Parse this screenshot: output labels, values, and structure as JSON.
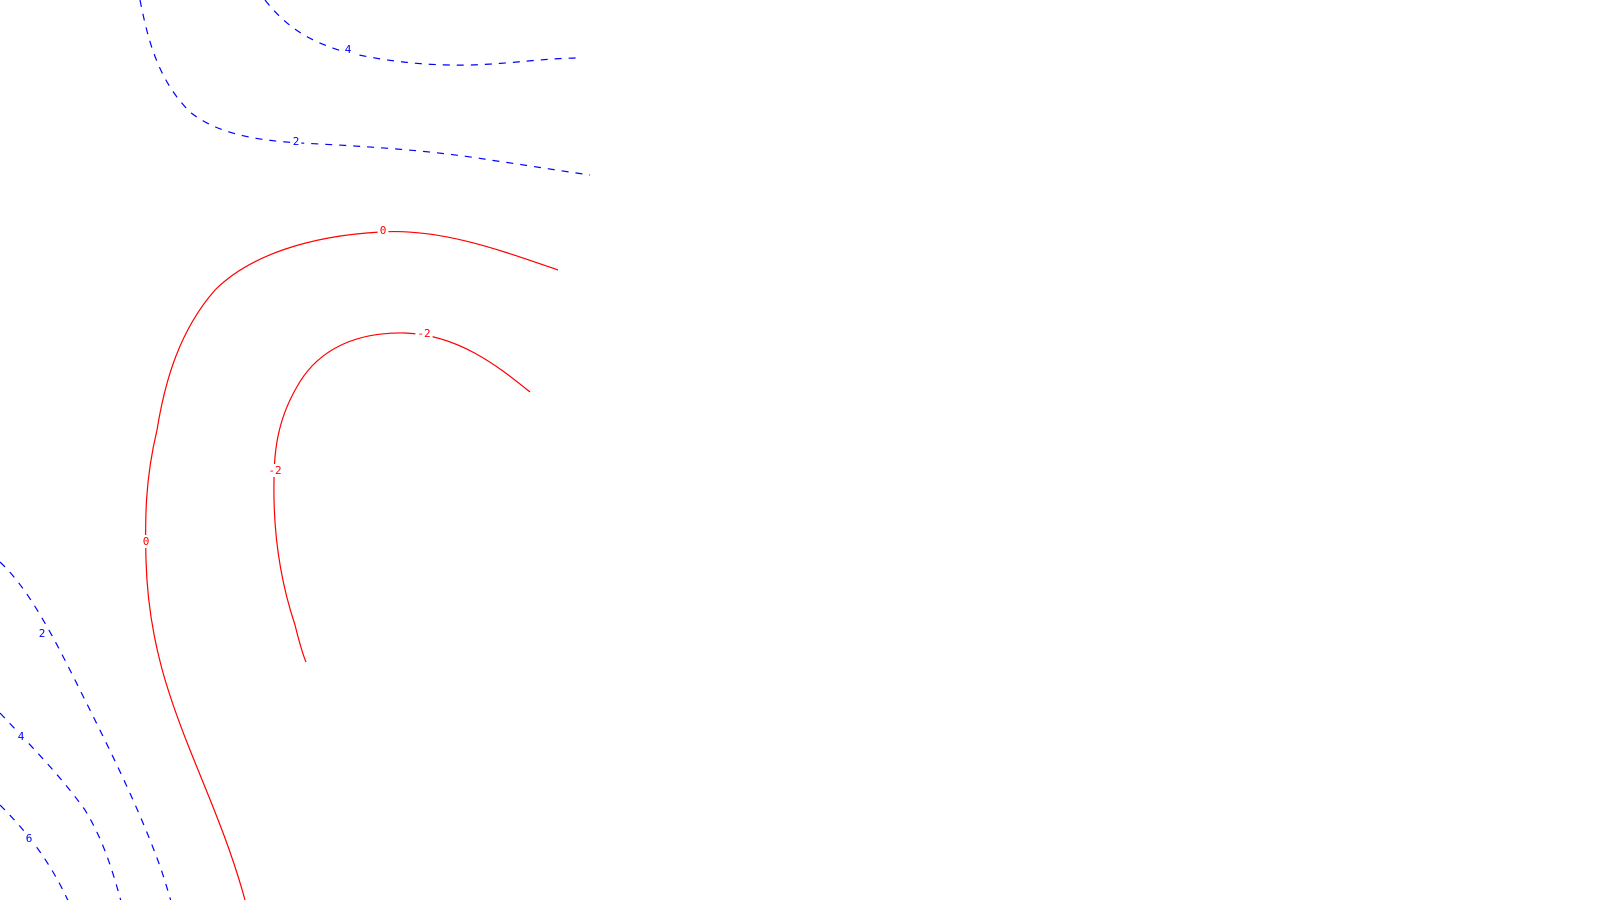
{
  "colors": {
    "positive": "#0000ff",
    "negative": "#ff0000",
    "background": "#ffffff"
  },
  "contours": [
    {
      "id": "pos-top-4",
      "level": "4",
      "sign": "positive",
      "style": "dashed"
    },
    {
      "id": "pos-top-2",
      "level": "2",
      "sign": "positive",
      "style": "dashed"
    },
    {
      "id": "zero",
      "level": "0",
      "sign": "negative",
      "style": "solid"
    },
    {
      "id": "neg-2",
      "level": "-2",
      "sign": "negative",
      "style": "solid"
    },
    {
      "id": "pos-bl-2",
      "level": "2",
      "sign": "positive",
      "style": "dashed"
    },
    {
      "id": "pos-bl-4",
      "level": "4",
      "sign": "positive",
      "style": "dashed"
    },
    {
      "id": "pos-bl-6",
      "level": "6",
      "sign": "positive",
      "style": "dashed"
    }
  ],
  "labels": [
    {
      "text": "4",
      "sign": "positive"
    },
    {
      "text": "2",
      "sign": "positive"
    },
    {
      "text": "0",
      "sign": "negative"
    },
    {
      "text": "-2",
      "sign": "negative"
    },
    {
      "text": "-2",
      "sign": "negative"
    },
    {
      "text": "0",
      "sign": "negative"
    },
    {
      "text": "2",
      "sign": "positive"
    },
    {
      "text": "4",
      "sign": "positive"
    },
    {
      "text": "6",
      "sign": "positive"
    }
  ]
}
